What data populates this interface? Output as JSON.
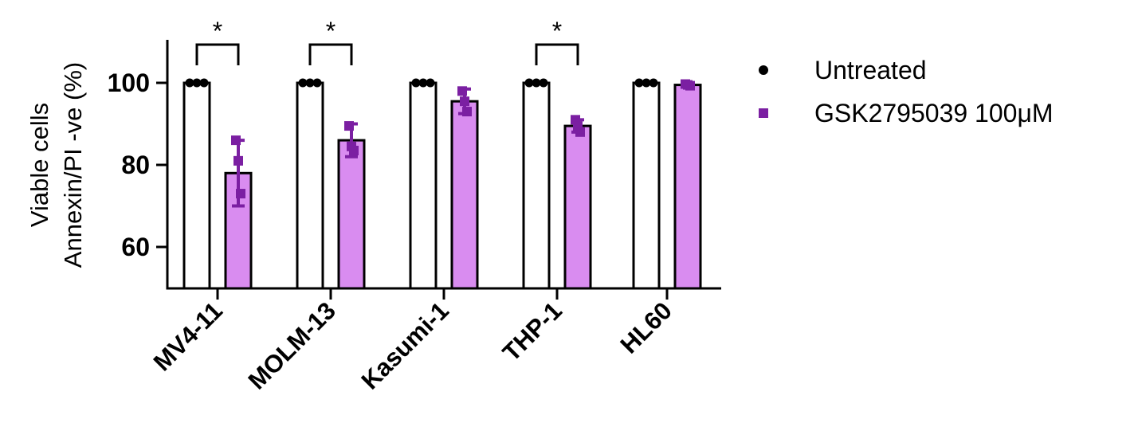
{
  "chart_data": {
    "type": "bar",
    "title": "",
    "xlabel": "",
    "ylabel_lines": [
      "Viable cells",
      "Annexin/PI -ve (%)"
    ],
    "ylim": [
      50,
      110
    ],
    "yticks": [
      60,
      80,
      100
    ],
    "categories": [
      "MV4-11",
      "MOLM-13",
      "Kasumi-1",
      "THP-1",
      "HL60"
    ],
    "series": [
      {
        "name": "Untreated",
        "color": "#000000",
        "fill": "#ffffff",
        "values": [
          100,
          100,
          100,
          100,
          100
        ],
        "sd": [
          0,
          0,
          0,
          0,
          0
        ],
        "points": [
          [
            100,
            100,
            100
          ],
          [
            100,
            100,
            100
          ],
          [
            100,
            100,
            100
          ],
          [
            100,
            100,
            100
          ],
          [
            100,
            100,
            100
          ]
        ]
      },
      {
        "name": "GSK2795039 100μM",
        "color": "#7B1FA2",
        "fill": "#D98CF0",
        "values": [
          78,
          86,
          95.5,
          89.5,
          99.5
        ],
        "sd": [
          8,
          4,
          3,
          1.5,
          0.4
        ],
        "points": [
          [
            86,
            81,
            73
          ],
          [
            89.5,
            84.5,
            83.5
          ],
          [
            98,
            95.5,
            93
          ],
          [
            91,
            89.5,
            88
          ],
          [
            99.7,
            99.5,
            99.3
          ]
        ]
      }
    ],
    "significance": [
      {
        "category": "MV4-11",
        "label": "*"
      },
      {
        "category": "MOLM-13",
        "label": "*"
      },
      {
        "category": "THP-1",
        "label": "*"
      }
    ],
    "legend_position": "top-right"
  }
}
